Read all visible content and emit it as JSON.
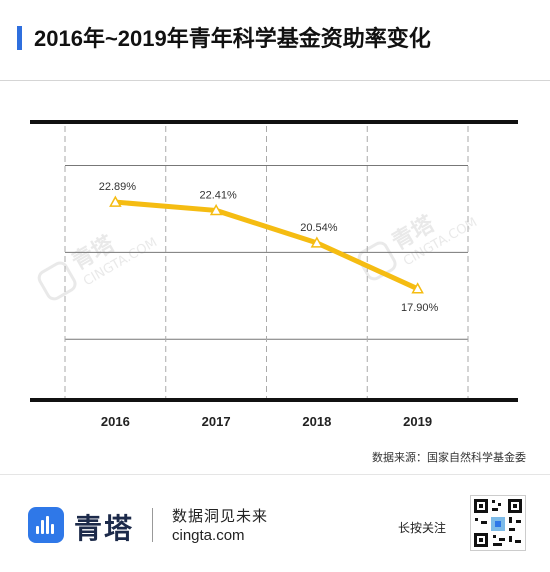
{
  "title": "2016年~2019年青年科学基金资助率变化",
  "colors": {
    "accent": "#2f6fde",
    "line": "#f5bc12",
    "watermark": "#dcdcdc"
  },
  "chart_data": {
    "type": "line",
    "x": [
      "2016",
      "2017",
      "2018",
      "2019"
    ],
    "series": [
      {
        "values": [
          22.89,
          22.41,
          20.54,
          17.9
        ],
        "labels": [
          "22.89%",
          "22.41%",
          "20.54%",
          "17.90%"
        ]
      }
    ],
    "ylim": [
      11.5,
      27.5
    ],
    "gridlines": [
      15,
      20,
      25
    ],
    "marker": "triangle-open",
    "grid": true,
    "legend": "none"
  },
  "source": "数据来源：国家自然科学基金委",
  "watermark": {
    "brand": "青塔",
    "url": "CINGTA.COM"
  },
  "footer": {
    "brand_name": "青塔",
    "slogan": "数据洞见未来",
    "url": "cingta.com",
    "qr_hint": "长按关注"
  }
}
